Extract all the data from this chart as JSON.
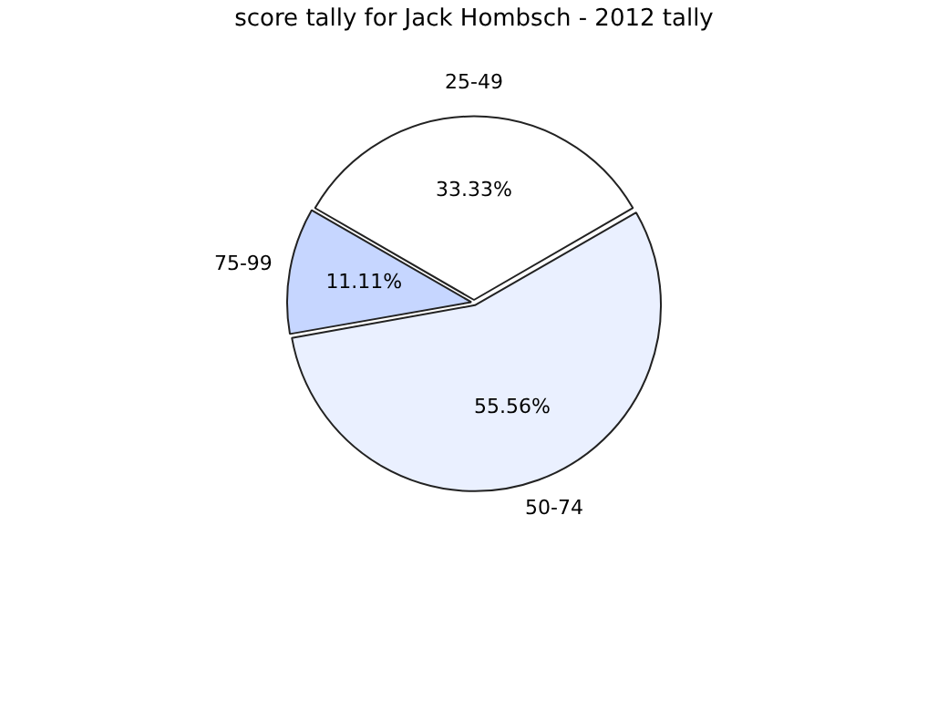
{
  "chart_data": {
    "type": "pie",
    "title": "score tally for Jack Hombsch - 2012 tally",
    "categories": [
      "25-49",
      "50-74",
      "75-99"
    ],
    "values": [
      33.33,
      55.56,
      11.11
    ],
    "value_labels": [
      "33.33%",
      "55.56%",
      "11.11%"
    ],
    "colors": [
      "#ffffff",
      "#eaf0ff",
      "#c6d6ff"
    ],
    "legend": false
  }
}
